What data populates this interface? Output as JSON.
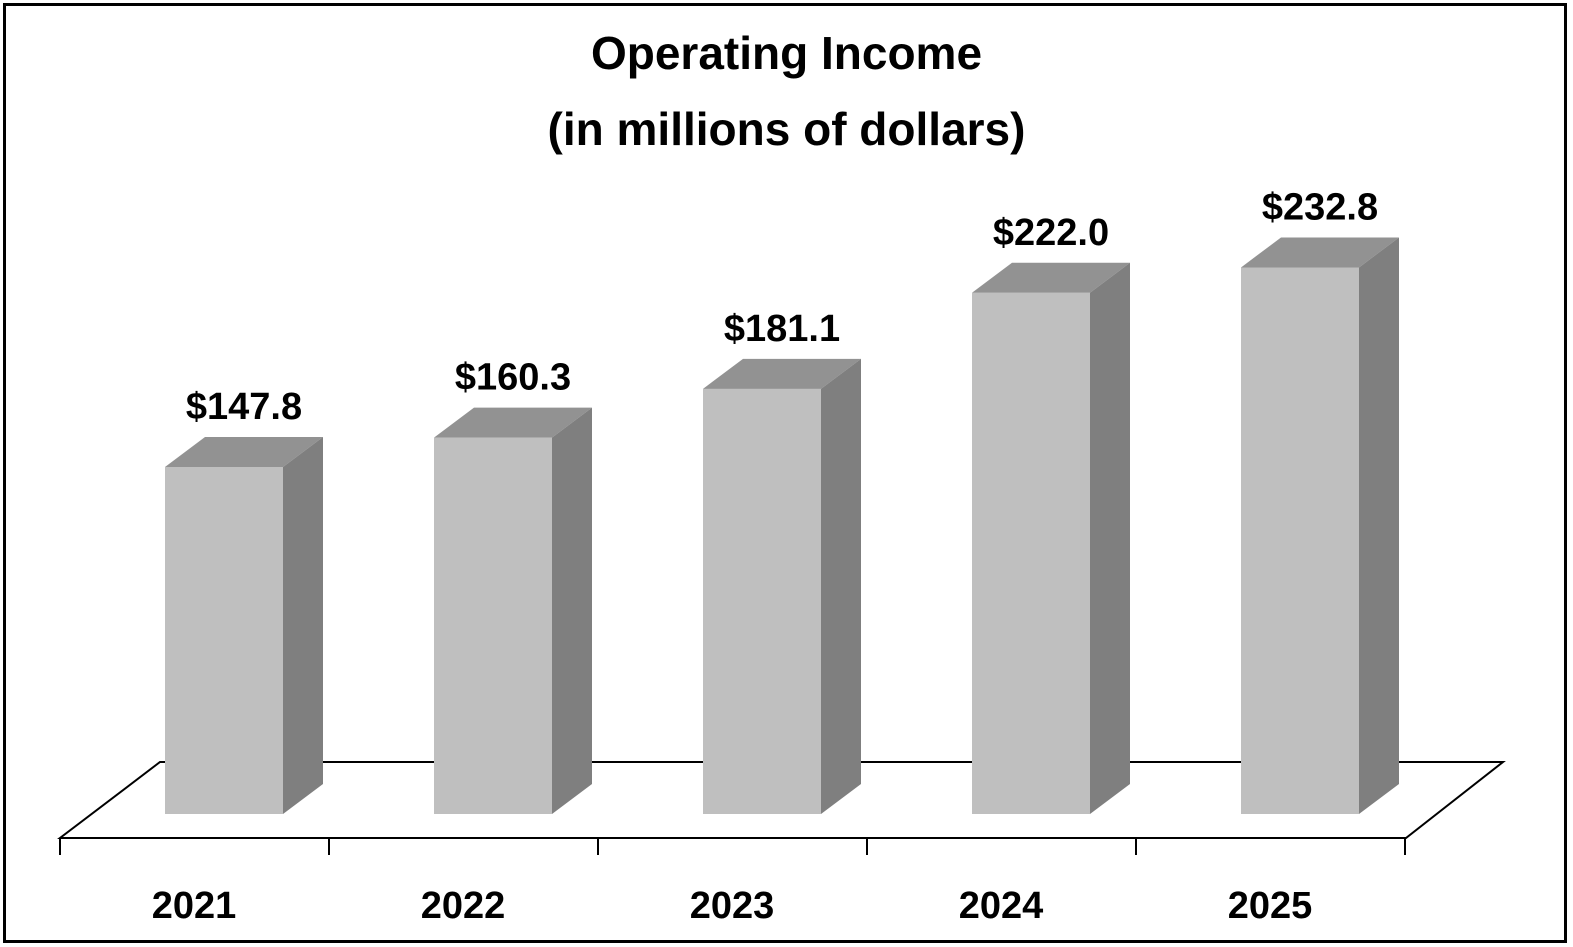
{
  "title": {
    "line1": "Operating Income",
    "line2": "(in millions of dollars)"
  },
  "colors": {
    "bar_front": "#bfbfbf",
    "bar_top": "#929292",
    "bar_side": "#7f7f7f",
    "floor_line": "#000000",
    "border": "#000000"
  },
  "chart_data": {
    "type": "bar",
    "title": "Operating Income (in millions of dollars)",
    "xlabel": "",
    "ylabel": "",
    "categories": [
      "2021",
      "2022",
      "2023",
      "2024",
      "2025"
    ],
    "values": [
      147.8,
      160.3,
      181.1,
      222.0,
      232.8
    ],
    "data_labels": [
      "$147.8",
      "$160.3",
      "$181.1",
      "$222.0",
      "$232.8"
    ],
    "style": "3d-column",
    "grid": false,
    "legend": "none"
  }
}
